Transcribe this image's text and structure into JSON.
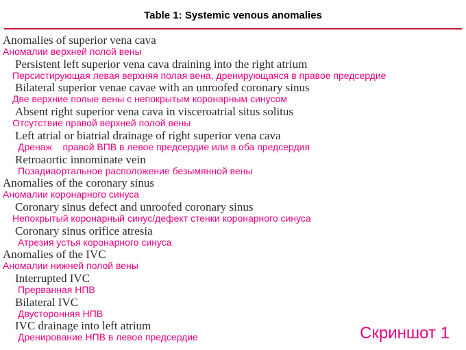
{
  "title": "Table 1: Systemic venous anomalies",
  "colors": {
    "rule": "#c41e3a",
    "english_text": "#2a2a2a",
    "russian_text": "#e6007e",
    "background": "#ffffff"
  },
  "typography": {
    "title_fontsize": 15,
    "english_fontsize": 17,
    "russian_fontsize": 14,
    "footer_fontsize": 24
  },
  "sections": [
    {
      "en": "Anomalies of superior vena cava",
      "ru": "Аномалии верхней полой вены",
      "items": [
        {
          "en": "Persistent left superior vena cava draining into the right atrium",
          "ru": "Персистирующая левая верхняя полая вена, дренирующаяся в правое предсердие"
        },
        {
          "en": "Bilateral superior venae cavae with an unroofed coronary sinus",
          "ru": "Две верхние полые вены с непокрытым коронарным синусом"
        },
        {
          "en": "Absent right superior vena cava in visceroatrial situs solitus",
          "ru": "Отсутствие правой верхней полой вены"
        },
        {
          "en": "Left atrial or biatrial drainage of right superior vena cava",
          "ru": "Дренаж    правой ВПВ в левое предсердие или в оба предсердия"
        },
        {
          "en": "Retroaortic innominate vein",
          "ru": "Позадиаортальное расположение безымянной вены"
        }
      ]
    },
    {
      "en": "Anomalies of the coronary sinus",
      "ru": "Аномалии коронарного синуса",
      "items": [
        {
          "en": "Coronary sinus defect and unroofed coronary sinus",
          "ru": "Непокрытый коронарный синус/дефект стенки коронарного синуса"
        },
        {
          "en": "Coronary sinus orifice atresia",
          "ru": "Атрезия устья коронарного синуса"
        }
      ]
    },
    {
      "en": "Anomalies of the IVC",
      "ru": "Аномалии нижней полой вены",
      "items": [
        {
          "en": "Interrupted IVC",
          "ru": "Прерванная НПВ"
        },
        {
          "en": "Bilateral IVC",
          "ru": "Двусторонняя НПВ"
        },
        {
          "en": "IVC drainage into left atrium",
          "ru": "Дренирование НПВ в левое предсердие"
        }
      ]
    }
  ],
  "footer": "Скриншот 1"
}
